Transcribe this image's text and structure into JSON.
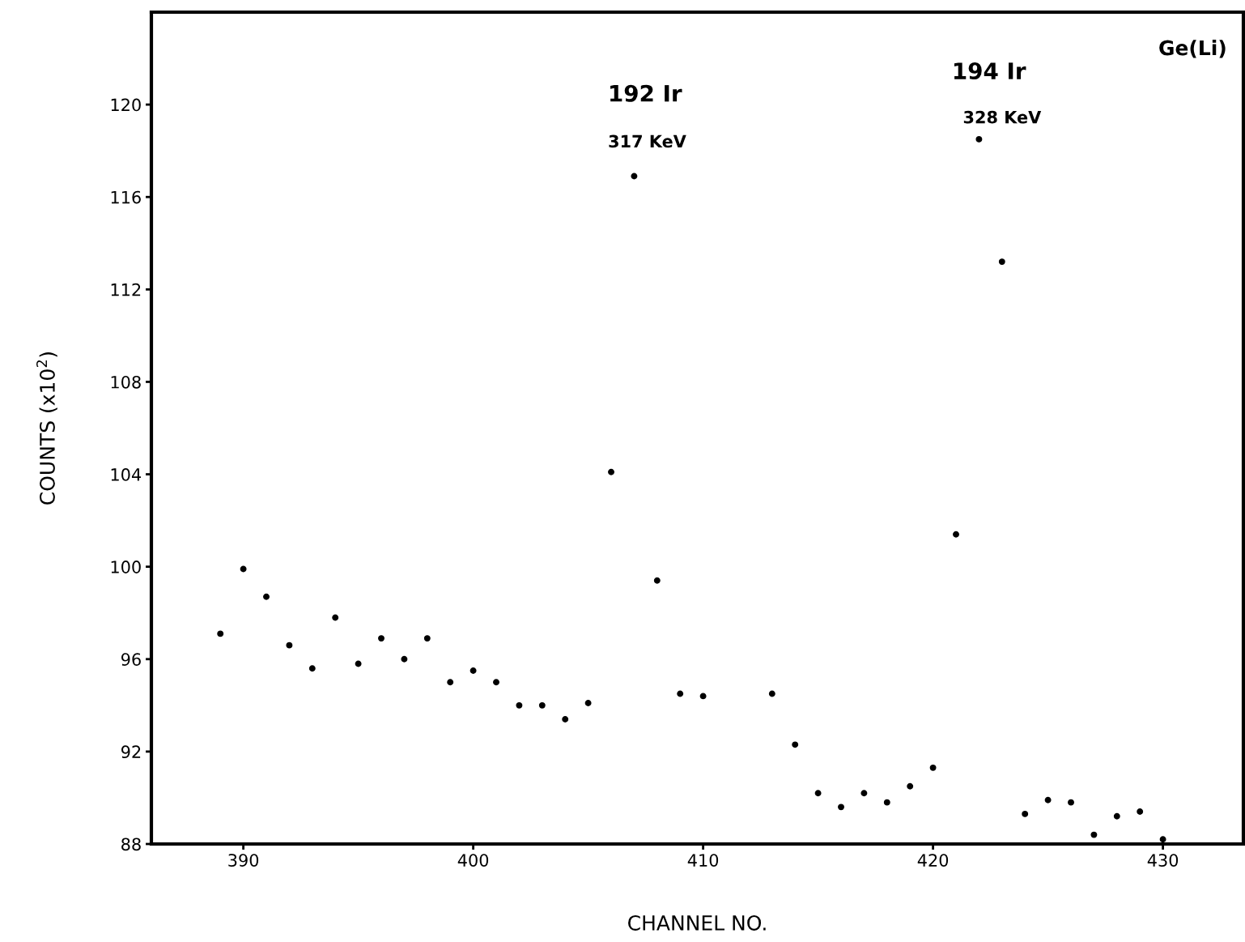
{
  "chart_data": {
    "type": "scatter",
    "xlabel": "CHANNEL NO.",
    "ylabel": "COUNTS (x10$^{2}$)",
    "x": [
      389,
      390,
      391,
      392,
      393,
      394,
      395,
      396,
      397,
      398,
      399,
      400,
      401,
      402,
      403,
      404,
      405,
      406,
      407,
      408,
      409,
      410,
      413,
      414,
      415,
      416,
      417,
      418,
      419,
      420,
      421,
      422,
      423,
      424,
      425,
      426,
      427,
      428,
      429,
      430
    ],
    "series": [
      {
        "color": "#000000",
        "values": [
          97.1,
          99.9,
          98.7,
          96.6,
          95.6,
          97.8,
          95.8,
          96.9,
          96.0,
          96.9,
          95.0,
          95.5,
          95.0,
          94.0,
          94.0,
          93.4,
          94.1,
          104.1,
          116.9,
          99.4,
          94.5,
          94.4,
          94.5,
          92.3,
          90.2,
          89.6,
          90.2,
          89.8,
          90.5,
          91.3,
          101.4,
          118.5,
          113.2,
          89.3,
          89.9,
          89.8,
          88.4,
          89.2,
          89.4,
          88.2
        ]
      }
    ],
    "xlim": [
      386,
      433.5
    ],
    "ylim": [
      88,
      124
    ],
    "xticks": [
      390,
      400,
      410,
      420,
      430
    ],
    "yticks": [
      88,
      92,
      96,
      100,
      104,
      108,
      112,
      116,
      120
    ],
    "marker": "circle",
    "grid": false,
    "legend": false,
    "annotations": [
      "192 Ir",
      "317 KeV",
      "194 Ir",
      "328 KeV",
      "Ge(Li)"
    ]
  }
}
